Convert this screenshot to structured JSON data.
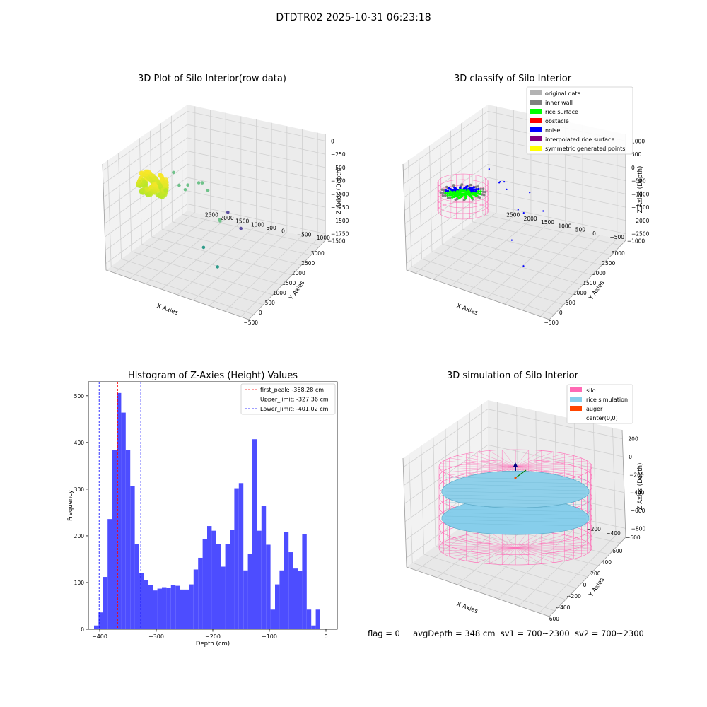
{
  "figure": {
    "suptitle": "DTDTR02 2025-10-31 06:23:18",
    "footer": {
      "flag": "flag = 0",
      "avg_depth": "avgDepth = 348 cm",
      "sv1": "sv1 = 700~2300",
      "sv2": "sv2 = 700~2300"
    }
  },
  "colors": {
    "hist_bar": "#4d4dff",
    "first_peak": "#ff0000",
    "limits": "#0000ff",
    "wire": "#ff69b4",
    "rice": "#87ceeb",
    "auger": "#ff4500",
    "pane": "#f2f2f2",
    "grid": "#d0d0d0"
  },
  "chart_data": [
    {
      "id": "raw",
      "type": "scatter",
      "title": "3D Plot of Silo Interior(row data)",
      "xlabel": "X Axies",
      "ylabel": "Y Axies",
      "zlabel": "Z Axies (Depth)",
      "xticks": [
        "−500",
        "0",
        "500",
        "1000",
        "1500",
        "2000",
        "2500",
        "3000"
      ],
      "yticks": [
        "−1500",
        "−1000",
        "−500",
        "0",
        "500",
        "1000",
        "1500",
        "2000",
        "2500"
      ],
      "zticks": [
        "0",
        "−250",
        "−500",
        "−750",
        "−1000",
        "−1250",
        "−1500",
        "−1750"
      ],
      "xlim": [
        -650,
        3200
      ],
      "ylim": [
        -1600,
        2700
      ],
      "zlim": [
        -1900,
        100
      ],
      "cluster": {
        "center_x": 150,
        "center_y": 1700,
        "z_range": [
          -500,
          -250
        ]
      },
      "points": [
        [
          700,
          1050,
          -550
        ],
        [
          1300,
          900,
          -620
        ],
        [
          1450,
          1100,
          -720
        ],
        [
          1150,
          1250,
          -680
        ],
        [
          1400,
          800,
          -780
        ],
        [
          800,
          1450,
          -350
        ],
        [
          650,
          1200,
          -480
        ],
        [
          1150,
          300,
          -1150
        ],
        [
          1050,
          250,
          -1080
        ],
        [
          300,
          300,
          -1320
        ],
        [
          150,
          -200,
          -1520
        ],
        [
          2150,
          300,
          -1680
        ],
        [
          2900,
          1150,
          -1850
        ]
      ]
    },
    {
      "id": "classify",
      "type": "scatter",
      "title": "3D classify of Silo Interior",
      "xlabel": "X Axies",
      "ylabel": "Y Axies",
      "zlabel": "Z Axies (Depth)",
      "xticks": [
        "−500",
        "0",
        "500",
        "1000",
        "1500",
        "2000",
        "2500",
        "3000"
      ],
      "yticks": [
        "−1000",
        "−500",
        "0",
        "500",
        "1000",
        "1500",
        "2000",
        "2500"
      ],
      "zticks": [
        "1000",
        "500",
        "0",
        "−500",
        "−1000",
        "−1500",
        "−2000",
        "−2500"
      ],
      "xlim": [
        -650,
        3200
      ],
      "ylim": [
        -1300,
        2700
      ],
      "zlim": [
        -2800,
        1100
      ],
      "legend": [
        {
          "label": "original data",
          "color": "#b3b3b3"
        },
        {
          "label": "inner wall",
          "color": "#808080"
        },
        {
          "label": "rice surface",
          "color": "#00ff00"
        },
        {
          "label": "obstacle",
          "color": "#ff0000"
        },
        {
          "label": "noise",
          "color": "#0000ff"
        },
        {
          "label": "interpolated rice surface",
          "color": "#800080"
        },
        {
          "label": "symmetric generated points",
          "color": "#ffff00"
        }
      ],
      "noise_points": [
        [
          1300,
          1100,
          -300
        ],
        [
          1500,
          1100,
          -450
        ],
        [
          1350,
          950,
          -550
        ],
        [
          1600,
          1300,
          -650
        ],
        [
          1100,
          500,
          -900
        ],
        [
          1200,
          400,
          -1050
        ],
        [
          400,
          300,
          -1400
        ],
        [
          -100,
          -300,
          -1700
        ],
        [
          2150,
          400,
          -1700
        ],
        [
          2900,
          1200,
          -1950
        ],
        [
          2850,
          2300,
          -1550
        ]
      ]
    },
    {
      "id": "histogram",
      "type": "bar",
      "title": "Histogram of Z-Axies (Height) Values",
      "xlabel": "Depth (cm)",
      "ylabel": "Frequency",
      "xlim": [
        -420,
        20
      ],
      "ylim": [
        0,
        530
      ],
      "xticks": [
        -400,
        -300,
        -200,
        -100,
        0
      ],
      "yticks": [
        0,
        100,
        200,
        300,
        400,
        500
      ],
      "bin_start": -410,
      "bin_width": 8,
      "values": [
        8,
        36,
        112,
        236,
        384,
        506,
        464,
        384,
        306,
        182,
        120,
        105,
        94,
        83,
        87,
        90,
        88,
        94,
        93,
        85,
        85,
        96,
        128,
        153,
        193,
        221,
        211,
        182,
        134,
        183,
        213,
        302,
        313,
        126,
        161,
        407,
        211,
        265,
        181,
        42,
        96,
        126,
        208,
        165,
        130,
        125,
        204,
        42,
        8,
        42
      ],
      "lines": [
        {
          "label": "first_peak: -368.28 cm",
          "value": -368.28,
          "color": "#ff0000"
        },
        {
          "label": "Upper_limit: -327.36 cm",
          "value": -327.36,
          "color": "#0000ff"
        },
        {
          "label": "Lower_limit: -401.02 cm",
          "value": -401.02,
          "color": "#0000ff"
        }
      ]
    },
    {
      "id": "simulation",
      "type": "scatter",
      "title": "3D simulation of Silo Interior",
      "xlabel": "X Axies",
      "ylabel": "Y Axies",
      "zlabel": "Z Axies (Depth)",
      "xticks": [
        "−600",
        "−400",
        "−200",
        "0",
        "200",
        "400",
        "600"
      ],
      "yticks": [
        "−600",
        "−400",
        "−200",
        "0",
        "200",
        "400",
        "600"
      ],
      "zticks": [
        "200",
        "0",
        "−200",
        "−400",
        "−600",
        "−800"
      ],
      "xlim": [
        -700,
        700
      ],
      "ylim": [
        -700,
        700
      ],
      "zlim": [
        -1000,
        350
      ],
      "legend": [
        {
          "label": "silo",
          "color": "#ff69b4"
        },
        {
          "label": "rice simulation",
          "color": "#87ceeb"
        },
        {
          "label": "auger",
          "color": "#ff4500"
        },
        {
          "label": "center(0,0)",
          "color": ""
        }
      ]
    }
  ]
}
